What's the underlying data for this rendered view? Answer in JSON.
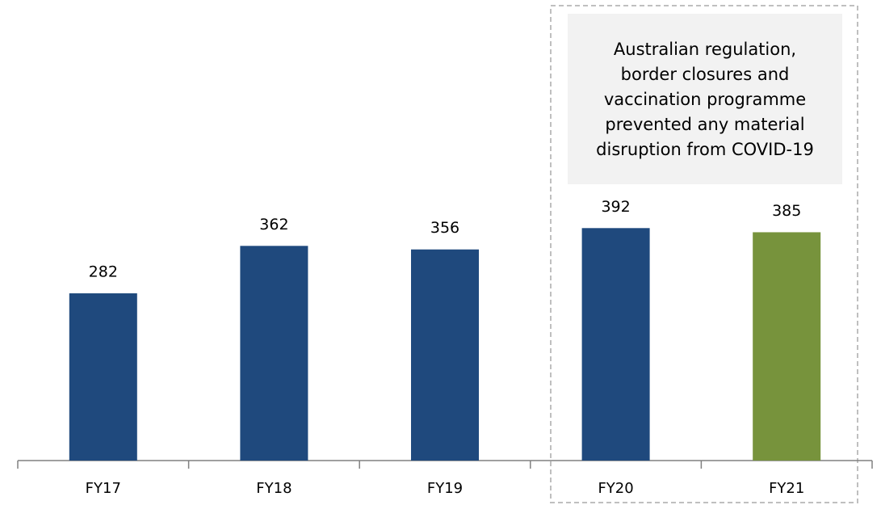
{
  "chart_data": {
    "type": "bar",
    "categories": [
      "FY17",
      "FY18",
      "FY19",
      "FY20",
      "FY21"
    ],
    "values": [
      282,
      362,
      356,
      392,
      385
    ],
    "colors": [
      "#1f497d",
      "#1f497d",
      "#1f497d",
      "#1f497d",
      "#77933c"
    ],
    "ylim": [
      0,
      763
    ],
    "annotation": [
      "Australian regulation,",
      "border closures and",
      "vaccination programme",
      "prevented any material",
      "disruption from COVID-19"
    ]
  }
}
